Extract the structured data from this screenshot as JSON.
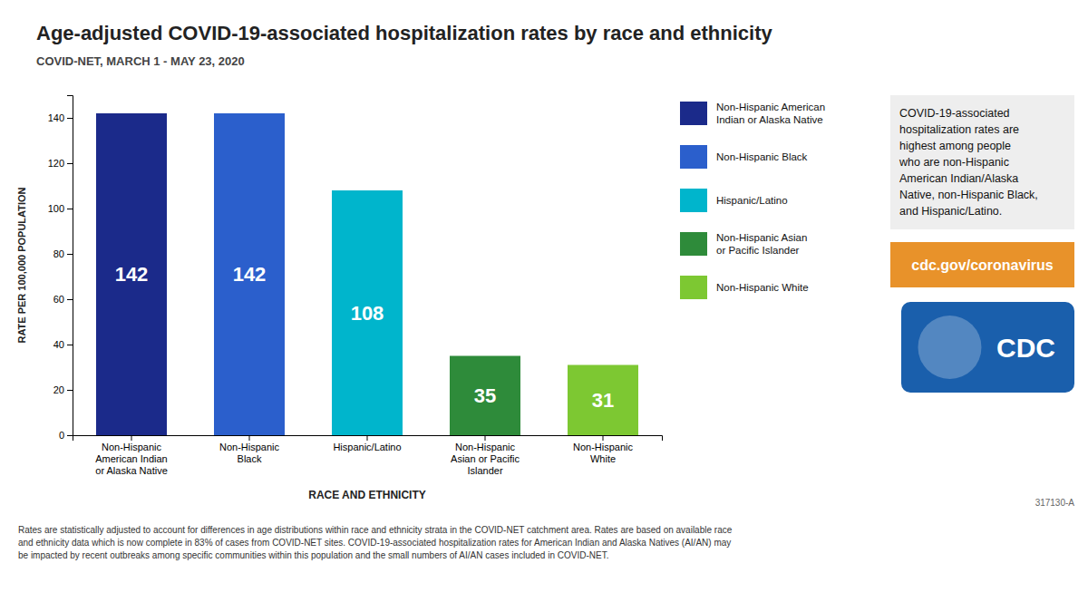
{
  "chart_data": {
    "type": "bar",
    "title": "Age-adjusted COVID-19-associated hospitalization rates by race and ethnicity",
    "subtitle": "COVID-NET, MARCH 1 - MAY 23, 2020",
    "categories": [
      "Non-Hispanic\nAmerican Indian\nor Alaska Native",
      "Non-Hispanic\nBlack",
      "Hispanic/Latino",
      "Non-Hispanic\nAsian or Pacific\nIslander",
      "Non-Hispanic\nWhite"
    ],
    "values": [
      142,
      142,
      108,
      35,
      31
    ],
    "colors": [
      "#1b2a8a",
      "#2b5fcc",
      "#00b5cc",
      "#2e8b3a",
      "#7dc832"
    ],
    "x_label": "RACE AND ETHNICITY",
    "y_label": "RATE PER 100,000 POPULATION",
    "ylim": [
      0,
      150
    ],
    "yticks": [
      0,
      20,
      40,
      60,
      80,
      100,
      120,
      140
    ],
    "grid": false,
    "data_labels": true,
    "legend": "right",
    "legend_labels": [
      "Non-Hispanic American\nIndian or Alaska Native",
      "Non-Hispanic Black",
      "Hispanic/Latino",
      "Non-Hispanic Asian\nor Pacific Islander",
      "Non-Hispanic White"
    ],
    "annotations": [
      "COVID-19-associated\nhospitalization rates are\nhighest among people\nwho are non-Hispanic\nAmerican Indian/Alaska\nNative, non-Hispanic Black,\nand Hispanic/Latino.",
      "cdc.gov/coronavirus",
      "CDC",
      "317130-A"
    ],
    "footnote": "Rates are statistically adjusted to account for differences in age distributions within race and ethnicity strata in the COVID-NET catchment area. Rates are based on available race\nand ethnicity data which is now complete in 83% of cases from COVID-NET sites. COVID-19-associated hospitalization rates for American Indian and Alaska Natives (AI/AN) may\nbe impacted by recent outbreaks among specific communities within this population and the small numbers of AI/AN cases included in COVID-NET."
  }
}
